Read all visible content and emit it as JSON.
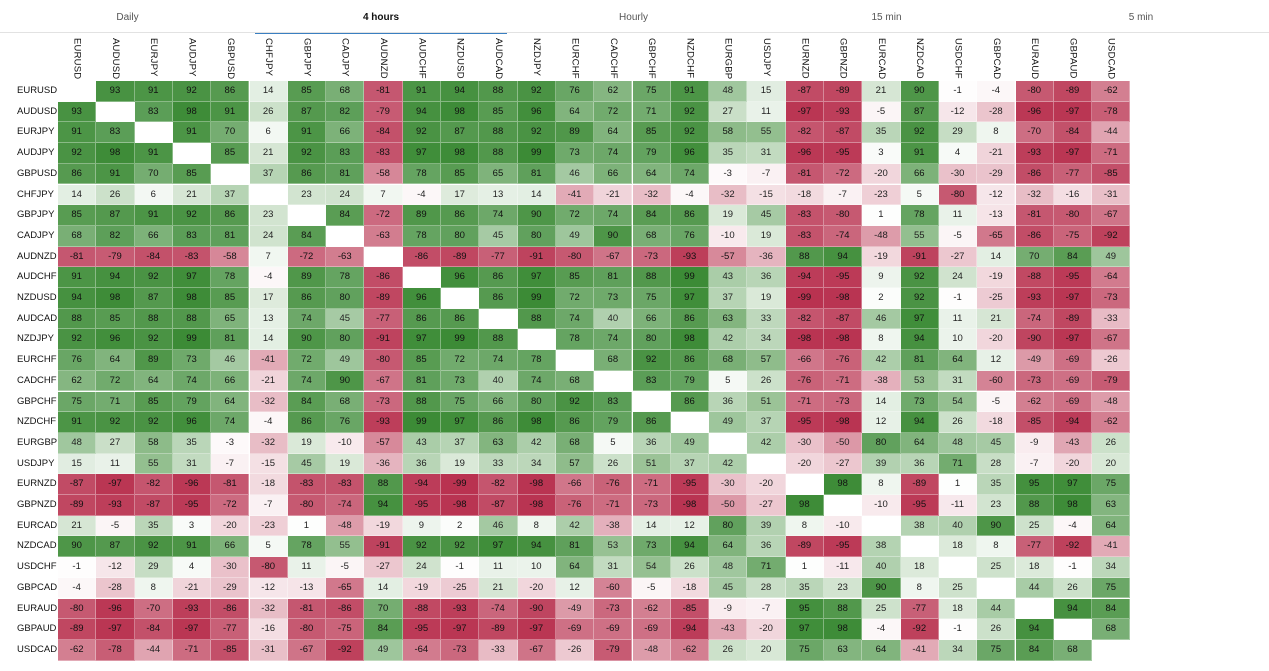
{
  "tabs": [
    {
      "label": "Daily",
      "active": false
    },
    {
      "label": "4 hours",
      "active": true
    },
    {
      "label": "Hourly",
      "active": false
    },
    {
      "label": "15 min",
      "active": false
    },
    {
      "label": "5 min",
      "active": false
    }
  ],
  "colors": {
    "positive": "#3a8a34",
    "negative": "#b8304e",
    "neutral": "#ffffff",
    "active_tab": "#3a7fc1"
  },
  "matrix": {
    "pairs": [
      "EURUSD",
      "AUDUSD",
      "EURJPY",
      "AUDJPY",
      "GBPUSD",
      "CHFJPY",
      "GBPJPY",
      "CADJPY",
      "AUDNZD",
      "AUDCHF",
      "NZDUSD",
      "AUDCAD",
      "NZDJPY",
      "EURCHF",
      "CADCHF",
      "GBPCHF",
      "NZDCHF",
      "EURGBP",
      "USDJPY",
      "EURNZD",
      "GBPNZD",
      "EURCAD",
      "NZDCAD",
      "USDCHF",
      "GBPCAD",
      "EURAUD",
      "GBPAUD",
      "USDCAD"
    ],
    "values": [
      [
        null,
        93,
        91,
        92,
        86,
        14,
        85,
        68,
        -81,
        91,
        94,
        88,
        92,
        76,
        62,
        75,
        91,
        48,
        15,
        -87,
        -89,
        21,
        90,
        -1,
        -4,
        -80,
        -89,
        -62
      ],
      [
        93,
        null,
        83,
        98,
        91,
        26,
        87,
        82,
        -79,
        94,
        98,
        85,
        96,
        64,
        72,
        71,
        92,
        27,
        11,
        -97,
        -93,
        -5,
        87,
        -12,
        -28,
        -96,
        -97,
        -78
      ],
      [
        91,
        83,
        null,
        91,
        70,
        6,
        91,
        66,
        -84,
        92,
        87,
        88,
        92,
        89,
        64,
        85,
        92,
        58,
        55,
        -82,
        -87,
        35,
        92,
        29,
        8,
        -70,
        -84,
        -44
      ],
      [
        92,
        98,
        91,
        null,
        85,
        21,
        92,
        83,
        -83,
        97,
        98,
        88,
        99,
        73,
        74,
        79,
        96,
        35,
        31,
        -96,
        -95,
        3,
        91,
        4,
        -21,
        -93,
        -97,
        -71
      ],
      [
        86,
        91,
        70,
        85,
        null,
        37,
        86,
        81,
        -58,
        78,
        85,
        65,
        81,
        46,
        66,
        64,
        74,
        -3,
        -7,
        -81,
        -72,
        -20,
        66,
        -30,
        -29,
        -86,
        -77,
        -85
      ],
      [
        14,
        26,
        6,
        21,
        37,
        null,
        23,
        24,
        7,
        -4,
        17,
        13,
        14,
        -41,
        -21,
        -32,
        -4,
        -32,
        -15,
        -18,
        -7,
        -23,
        5,
        -80,
        -12,
        -32,
        -16,
        -31
      ],
      [
        85,
        87,
        91,
        92,
        86,
        23,
        null,
        84,
        -72,
        89,
        86,
        74,
        90,
        72,
        74,
        84,
        86,
        19,
        45,
        -83,
        -80,
        1,
        78,
        11,
        -13,
        -81,
        -80,
        -67
      ],
      [
        68,
        82,
        66,
        83,
        81,
        24,
        84,
        null,
        -63,
        78,
        80,
        45,
        80,
        49,
        90,
        68,
        76,
        -10,
        19,
        -83,
        -74,
        -48,
        55,
        -5,
        -65,
        -86,
        -75,
        -92
      ],
      [
        -81,
        -79,
        -84,
        -83,
        -58,
        7,
        -72,
        -63,
        null,
        -86,
        -89,
        -77,
        -91,
        -80,
        -67,
        -73,
        -93,
        -57,
        -36,
        88,
        94,
        -19,
        -91,
        -27,
        14,
        70,
        84,
        49
      ],
      [
        91,
        94,
        92,
        97,
        78,
        -4,
        89,
        78,
        -86,
        null,
        96,
        86,
        97,
        85,
        81,
        88,
        99,
        43,
        36,
        -94,
        -95,
        9,
        92,
        24,
        -19,
        -88,
        -95,
        -64
      ],
      [
        94,
        98,
        87,
        98,
        85,
        17,
        86,
        80,
        -89,
        96,
        null,
        86,
        99,
        72,
        73,
        75,
        97,
        37,
        19,
        -99,
        -98,
        2,
        92,
        -1,
        -25,
        -93,
        -97,
        -73
      ],
      [
        88,
        85,
        88,
        88,
        65,
        13,
        74,
        45,
        -77,
        86,
        86,
        null,
        88,
        74,
        40,
        66,
        86,
        63,
        33,
        -82,
        -87,
        46,
        97,
        11,
        21,
        -74,
        -89,
        -33
      ],
      [
        92,
        96,
        92,
        99,
        81,
        14,
        90,
        80,
        -91,
        97,
        99,
        88,
        null,
        78,
        74,
        80,
        98,
        42,
        34,
        -98,
        -98,
        8,
        94,
        10,
        -20,
        -90,
        -97,
        -67
      ],
      [
        76,
        64,
        89,
        73,
        46,
        -41,
        72,
        49,
        -80,
        85,
        72,
        74,
        78,
        null,
        68,
        92,
        86,
        68,
        57,
        -66,
        -76,
        42,
        81,
        64,
        12,
        -49,
        -69,
        -26
      ],
      [
        62,
        72,
        64,
        74,
        66,
        -21,
        74,
        90,
        -67,
        81,
        73,
        40,
        74,
        68,
        null,
        83,
        79,
        5,
        26,
        -76,
        -71,
        -38,
        53,
        31,
        -60,
        -73,
        -69,
        -79
      ],
      [
        75,
        71,
        85,
        79,
        64,
        -32,
        84,
        68,
        -73,
        88,
        75,
        66,
        80,
        92,
        83,
        null,
        86,
        36,
        51,
        -71,
        -73,
        14,
        73,
        54,
        -5,
        -62,
        -69,
        -48
      ],
      [
        91,
        92,
        92,
        96,
        74,
        -4,
        86,
        76,
        -93,
        99,
        97,
        86,
        98,
        86,
        79,
        86,
        null,
        49,
        37,
        -95,
        -98,
        12,
        94,
        26,
        -18,
        -85,
        -94,
        -62
      ],
      [
        48,
        27,
        58,
        35,
        -3,
        -32,
        19,
        -10,
        -57,
        43,
        37,
        63,
        42,
        68,
        5,
        36,
        49,
        null,
        42,
        -30,
        -50,
        80,
        64,
        48,
        45,
        -9,
        -43,
        26
      ],
      [
        15,
        11,
        55,
        31,
        -7,
        -15,
        45,
        19,
        -36,
        36,
        19,
        33,
        34,
        57,
        26,
        51,
        37,
        42,
        null,
        -20,
        -27,
        39,
        36,
        71,
        28,
        -7,
        -20,
        20
      ],
      [
        -87,
        -97,
        -82,
        -96,
        -81,
        -18,
        -83,
        -83,
        88,
        -94,
        -99,
        -82,
        -98,
        -66,
        -76,
        -71,
        -95,
        -30,
        -20,
        null,
        98,
        8,
        -89,
        1,
        35,
        95,
        97,
        75
      ],
      [
        -89,
        -93,
        -87,
        -95,
        -72,
        -7,
        -80,
        -74,
        94,
        -95,
        -98,
        -87,
        -98,
        -76,
        -71,
        -73,
        -98,
        -50,
        -27,
        98,
        null,
        -10,
        -95,
        -11,
        23,
        88,
        98,
        63
      ],
      [
        21,
        -5,
        35,
        3,
        -20,
        -23,
        1,
        -48,
        -19,
        9,
        2,
        46,
        8,
        42,
        -38,
        14,
        12,
        80,
        39,
        8,
        -10,
        null,
        38,
        40,
        90,
        25,
        -4,
        64
      ],
      [
        90,
        87,
        92,
        91,
        66,
        5,
        78,
        55,
        -91,
        92,
        92,
        97,
        94,
        81,
        53,
        73,
        94,
        64,
        36,
        -89,
        -95,
        38,
        null,
        18,
        8,
        -77,
        -92,
        -41
      ],
      [
        -1,
        -12,
        29,
        4,
        -30,
        -80,
        11,
        -5,
        -27,
        24,
        -1,
        11,
        10,
        64,
        31,
        54,
        26,
        48,
        71,
        1,
        -11,
        40,
        18,
        null,
        25,
        18,
        -1,
        34
      ],
      [
        -4,
        -28,
        8,
        -21,
        -29,
        -12,
        -13,
        -65,
        14,
        -19,
        -25,
        21,
        -20,
        12,
        -60,
        -5,
        -18,
        45,
        28,
        35,
        23,
        90,
        8,
        25,
        null,
        44,
        26,
        75
      ],
      [
        -80,
        -96,
        -70,
        -93,
        -86,
        -32,
        -81,
        -86,
        70,
        -88,
        -93,
        -74,
        -90,
        -49,
        -73,
        -62,
        -85,
        -9,
        -7,
        95,
        88,
        25,
        -77,
        18,
        44,
        null,
        94,
        84
      ],
      [
        -89,
        -97,
        -84,
        -97,
        -77,
        -16,
        -80,
        -75,
        84,
        -95,
        -97,
        -89,
        -97,
        -69,
        -69,
        -69,
        -94,
        -43,
        -20,
        97,
        98,
        -4,
        -92,
        -1,
        26,
        94,
        null,
        68
      ],
      [
        -62,
        -78,
        -44,
        -71,
        -85,
        -31,
        -67,
        -92,
        49,
        -64,
        -73,
        -33,
        -67,
        -26,
        -79,
        -48,
        -62,
        26,
        20,
        75,
        63,
        64,
        -41,
        34,
        75,
        84,
        68,
        null
      ]
    ]
  }
}
